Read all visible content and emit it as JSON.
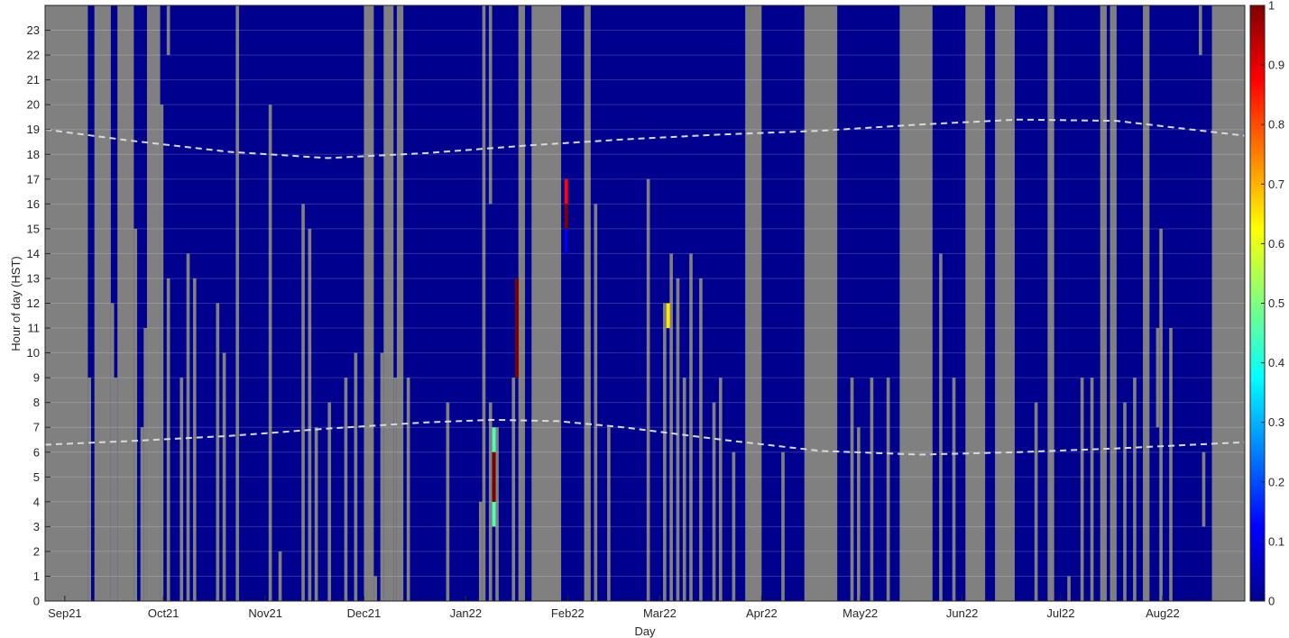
{
  "chart_data": {
    "type": "heatmap",
    "xlabel": "Day",
    "ylabel": "Hour of day (HST)",
    "x_tick_labels": [
      "Sep21",
      "Oct21",
      "Nov21",
      "Dec21",
      "Jan22",
      "Feb22",
      "Mar22",
      "Apr22",
      "May22",
      "Jun22",
      "Jul22",
      "Aug22"
    ],
    "x_tick_days": [
      0,
      30,
      61,
      91,
      122,
      153,
      181,
      212,
      242,
      273,
      303,
      334
    ],
    "xlim_days": [
      -6,
      359
    ],
    "y_ticks": [
      0,
      1,
      2,
      3,
      4,
      5,
      6,
      7,
      8,
      9,
      10,
      11,
      12,
      13,
      14,
      15,
      16,
      17,
      18,
      19,
      20,
      21,
      22,
      23
    ],
    "ylim": [
      0,
      24
    ],
    "colorbar": {
      "colormap": "jet",
      "clim": [
        0,
        1
      ],
      "tick_labels": [
        "0",
        "0.1",
        "0.2",
        "0.3",
        "0.4",
        "0.5",
        "0.6",
        "0.7",
        "0.8",
        "0.9",
        "1"
      ]
    },
    "missing_color": "#808080",
    "background_value_color": "#00008f",
    "no_data_full_days": [
      [
        -6,
        7
      ],
      [
        9,
        14
      ],
      [
        16,
        21
      ],
      [
        25,
        29
      ],
      [
        52,
        53
      ],
      [
        91,
        94
      ],
      [
        97,
        100
      ],
      [
        101,
        103
      ],
      [
        127,
        128
      ],
      [
        138,
        140
      ],
      [
        142,
        151
      ],
      [
        158,
        160
      ],
      [
        207,
        212
      ],
      [
        225,
        235
      ],
      [
        254,
        264
      ],
      [
        274,
        280
      ],
      [
        283,
        289
      ],
      [
        284,
        285
      ],
      [
        299,
        301
      ],
      [
        315,
        317
      ],
      [
        318,
        320
      ],
      [
        328,
        330
      ],
      [
        349,
        359
      ]
    ],
    "no_data_partial": [
      {
        "day": 7,
        "h0": 0,
        "h1": 9
      },
      {
        "day": 14,
        "h0": 0,
        "h1": 12
      },
      {
        "day": 15,
        "h0": 0,
        "h1": 9
      },
      {
        "day": 21,
        "h0": 0,
        "h1": 15
      },
      {
        "day": 23,
        "h0": 0,
        "h1": 7
      },
      {
        "day": 24,
        "h0": 0,
        "h1": 11
      },
      {
        "day": 29,
        "h0": 0,
        "h1": 20
      },
      {
        "day": 31,
        "h0": 22,
        "h1": 24
      },
      {
        "day": 31,
        "h0": 0,
        "h1": 13
      },
      {
        "day": 35,
        "h0": 0,
        "h1": 9
      },
      {
        "day": 37,
        "h0": 0,
        "h1": 14
      },
      {
        "day": 39,
        "h0": 0,
        "h1": 13
      },
      {
        "day": 46,
        "h0": 0,
        "h1": 12
      },
      {
        "day": 48,
        "h0": 0,
        "h1": 10
      },
      {
        "day": 62,
        "h0": 0,
        "h1": 20
      },
      {
        "day": 65,
        "h0": 0,
        "h1": 2
      },
      {
        "day": 72,
        "h0": 0,
        "h1": 16
      },
      {
        "day": 74,
        "h0": 0,
        "h1": 15
      },
      {
        "day": 76,
        "h0": 0,
        "h1": 7
      },
      {
        "day": 80,
        "h0": 0,
        "h1": 8
      },
      {
        "day": 85,
        "h0": 0,
        "h1": 9
      },
      {
        "day": 88,
        "h0": 0,
        "h1": 10
      },
      {
        "day": 94,
        "h0": 0,
        "h1": 1
      },
      {
        "day": 96,
        "h0": 0,
        "h1": 10
      },
      {
        "day": 100,
        "h0": 0,
        "h1": 9
      },
      {
        "day": 104,
        "h0": 0,
        "h1": 9
      },
      {
        "day": 116,
        "h0": 0,
        "h1": 8
      },
      {
        "day": 126,
        "h0": 0,
        "h1": 4
      },
      {
        "day": 129,
        "h0": 16,
        "h1": 24
      },
      {
        "day": 129,
        "h0": 0,
        "h1": 8
      },
      {
        "day": 131,
        "h0": 0,
        "h1": 7
      },
      {
        "day": 136,
        "h0": 0,
        "h1": 9
      },
      {
        "day": 161,
        "h0": 0,
        "h1": 16
      },
      {
        "day": 165,
        "h0": 0,
        "h1": 7
      },
      {
        "day": 177,
        "h0": 0,
        "h1": 17
      },
      {
        "day": 182,
        "h0": 0,
        "h1": 12
      },
      {
        "day": 184,
        "h0": 0,
        "h1": 14
      },
      {
        "day": 186,
        "h0": 0,
        "h1": 13
      },
      {
        "day": 188,
        "h0": 0,
        "h1": 9
      },
      {
        "day": 190,
        "h0": 0,
        "h1": 14
      },
      {
        "day": 193,
        "h0": 0,
        "h1": 13
      },
      {
        "day": 197,
        "h0": 0,
        "h1": 8
      },
      {
        "day": 199,
        "h0": 0,
        "h1": 9
      },
      {
        "day": 203,
        "h0": 0,
        "h1": 6
      },
      {
        "day": 218,
        "h0": 0,
        "h1": 6
      },
      {
        "day": 239,
        "h0": 0,
        "h1": 9
      },
      {
        "day": 241,
        "h0": 0,
        "h1": 7
      },
      {
        "day": 245,
        "h0": 0,
        "h1": 9
      },
      {
        "day": 250,
        "h0": 0,
        "h1": 9
      },
      {
        "day": 266,
        "h0": 0,
        "h1": 14
      },
      {
        "day": 270,
        "h0": 0,
        "h1": 9
      },
      {
        "day": 295,
        "h0": 0,
        "h1": 8
      },
      {
        "day": 305,
        "h0": 0,
        "h1": 1
      },
      {
        "day": 309,
        "h0": 0,
        "h1": 9
      },
      {
        "day": 312,
        "h0": 0,
        "h1": 9
      },
      {
        "day": 322,
        "h0": 0,
        "h1": 8
      },
      {
        "day": 325,
        "h0": 0,
        "h1": 9
      },
      {
        "day": 333,
        "h0": 0,
        "h1": 15
      },
      {
        "day": 336,
        "h0": 0,
        "h1": 11
      },
      {
        "day": 345,
        "h0": 22,
        "h1": 24
      },
      {
        "day": 332,
        "h0": 7,
        "h1": 11
      },
      {
        "day": 346,
        "h0": 3,
        "h1": 6
      }
    ],
    "value_cells": [
      {
        "day": 130,
        "h0": 3,
        "h1": 4,
        "value": 0.45
      },
      {
        "day": 130,
        "h0": 4,
        "h1": 6,
        "value": 1.0
      },
      {
        "day": 130,
        "h0": 6,
        "h1": 7,
        "value": 0.45
      },
      {
        "day": 137,
        "h0": 9,
        "h1": 13,
        "value": 1.0
      },
      {
        "day": 152,
        "h0": 14,
        "h1": 15,
        "value": 0.1
      },
      {
        "day": 152,
        "h0": 15,
        "h1": 16,
        "value": 1.0
      },
      {
        "day": 152,
        "h0": 16,
        "h1": 17,
        "value": 0.87
      },
      {
        "day": 183,
        "h0": 11,
        "h1": 12,
        "value": 0.65
      }
    ],
    "reference_lines": [
      {
        "name": "sunset",
        "style": "dashed",
        "days": [
          -6,
          20,
          50,
          80,
          110,
          140,
          170,
          200,
          230,
          260,
          290,
          320,
          359
        ],
        "hours": [
          19.0,
          18.55,
          18.1,
          17.85,
          18.05,
          18.35,
          18.6,
          18.8,
          18.95,
          19.2,
          19.4,
          19.35,
          18.75
        ]
      },
      {
        "name": "sunrise",
        "style": "dashed",
        "days": [
          -6,
          20,
          50,
          80,
          110,
          130,
          150,
          170,
          200,
          230,
          260,
          290,
          320,
          359
        ],
        "hours": [
          6.3,
          6.45,
          6.65,
          6.95,
          7.2,
          7.3,
          7.25,
          7.0,
          6.5,
          6.05,
          5.9,
          6.0,
          6.15,
          6.4
        ]
      }
    ]
  }
}
